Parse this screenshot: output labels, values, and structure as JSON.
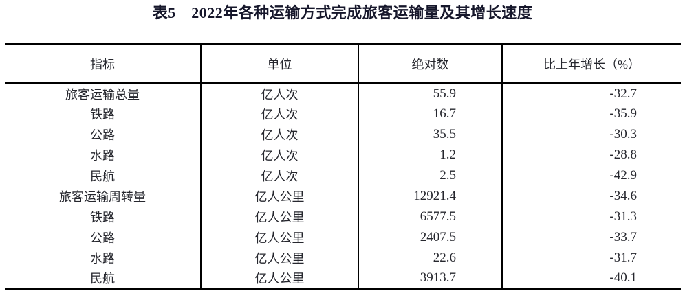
{
  "page": {
    "title": "表5　2022年各种运输方式完成旅客运输量及其增长速度"
  },
  "table": {
    "columns": [
      {
        "key": "indicator",
        "label": "指标"
      },
      {
        "key": "unit",
        "label": "单位"
      },
      {
        "key": "value",
        "label": "绝对数"
      },
      {
        "key": "growth",
        "label": "比上年增长（%）"
      }
    ],
    "rows": [
      {
        "indicator": "旅客运输总量",
        "unit": "亿人次",
        "value": "55.9",
        "growth": "-32.7"
      },
      {
        "indicator": "铁路",
        "unit": "亿人次",
        "value": "16.7",
        "growth": "-35.9"
      },
      {
        "indicator": "公路",
        "unit": "亿人次",
        "value": "35.5",
        "growth": "-30.3"
      },
      {
        "indicator": "水路",
        "unit": "亿人次",
        "value": "1.2",
        "growth": "-28.8"
      },
      {
        "indicator": "民航",
        "unit": "亿人次",
        "value": "2.5",
        "growth": "-42.9"
      },
      {
        "indicator": "旅客运输周转量",
        "unit": "亿人公里",
        "value": "12921.4",
        "growth": "-34.6"
      },
      {
        "indicator": "铁路",
        "unit": "亿人公里",
        "value": "6577.5",
        "growth": "-31.3"
      },
      {
        "indicator": "公路",
        "unit": "亿人公里",
        "value": "2407.5",
        "growth": "-33.7"
      },
      {
        "indicator": "水路",
        "unit": "亿人公里",
        "value": "22.6",
        "growth": "-31.7"
      },
      {
        "indicator": "民航",
        "unit": "亿人公里",
        "value": "3913.7",
        "growth": "-40.1"
      }
    ]
  }
}
